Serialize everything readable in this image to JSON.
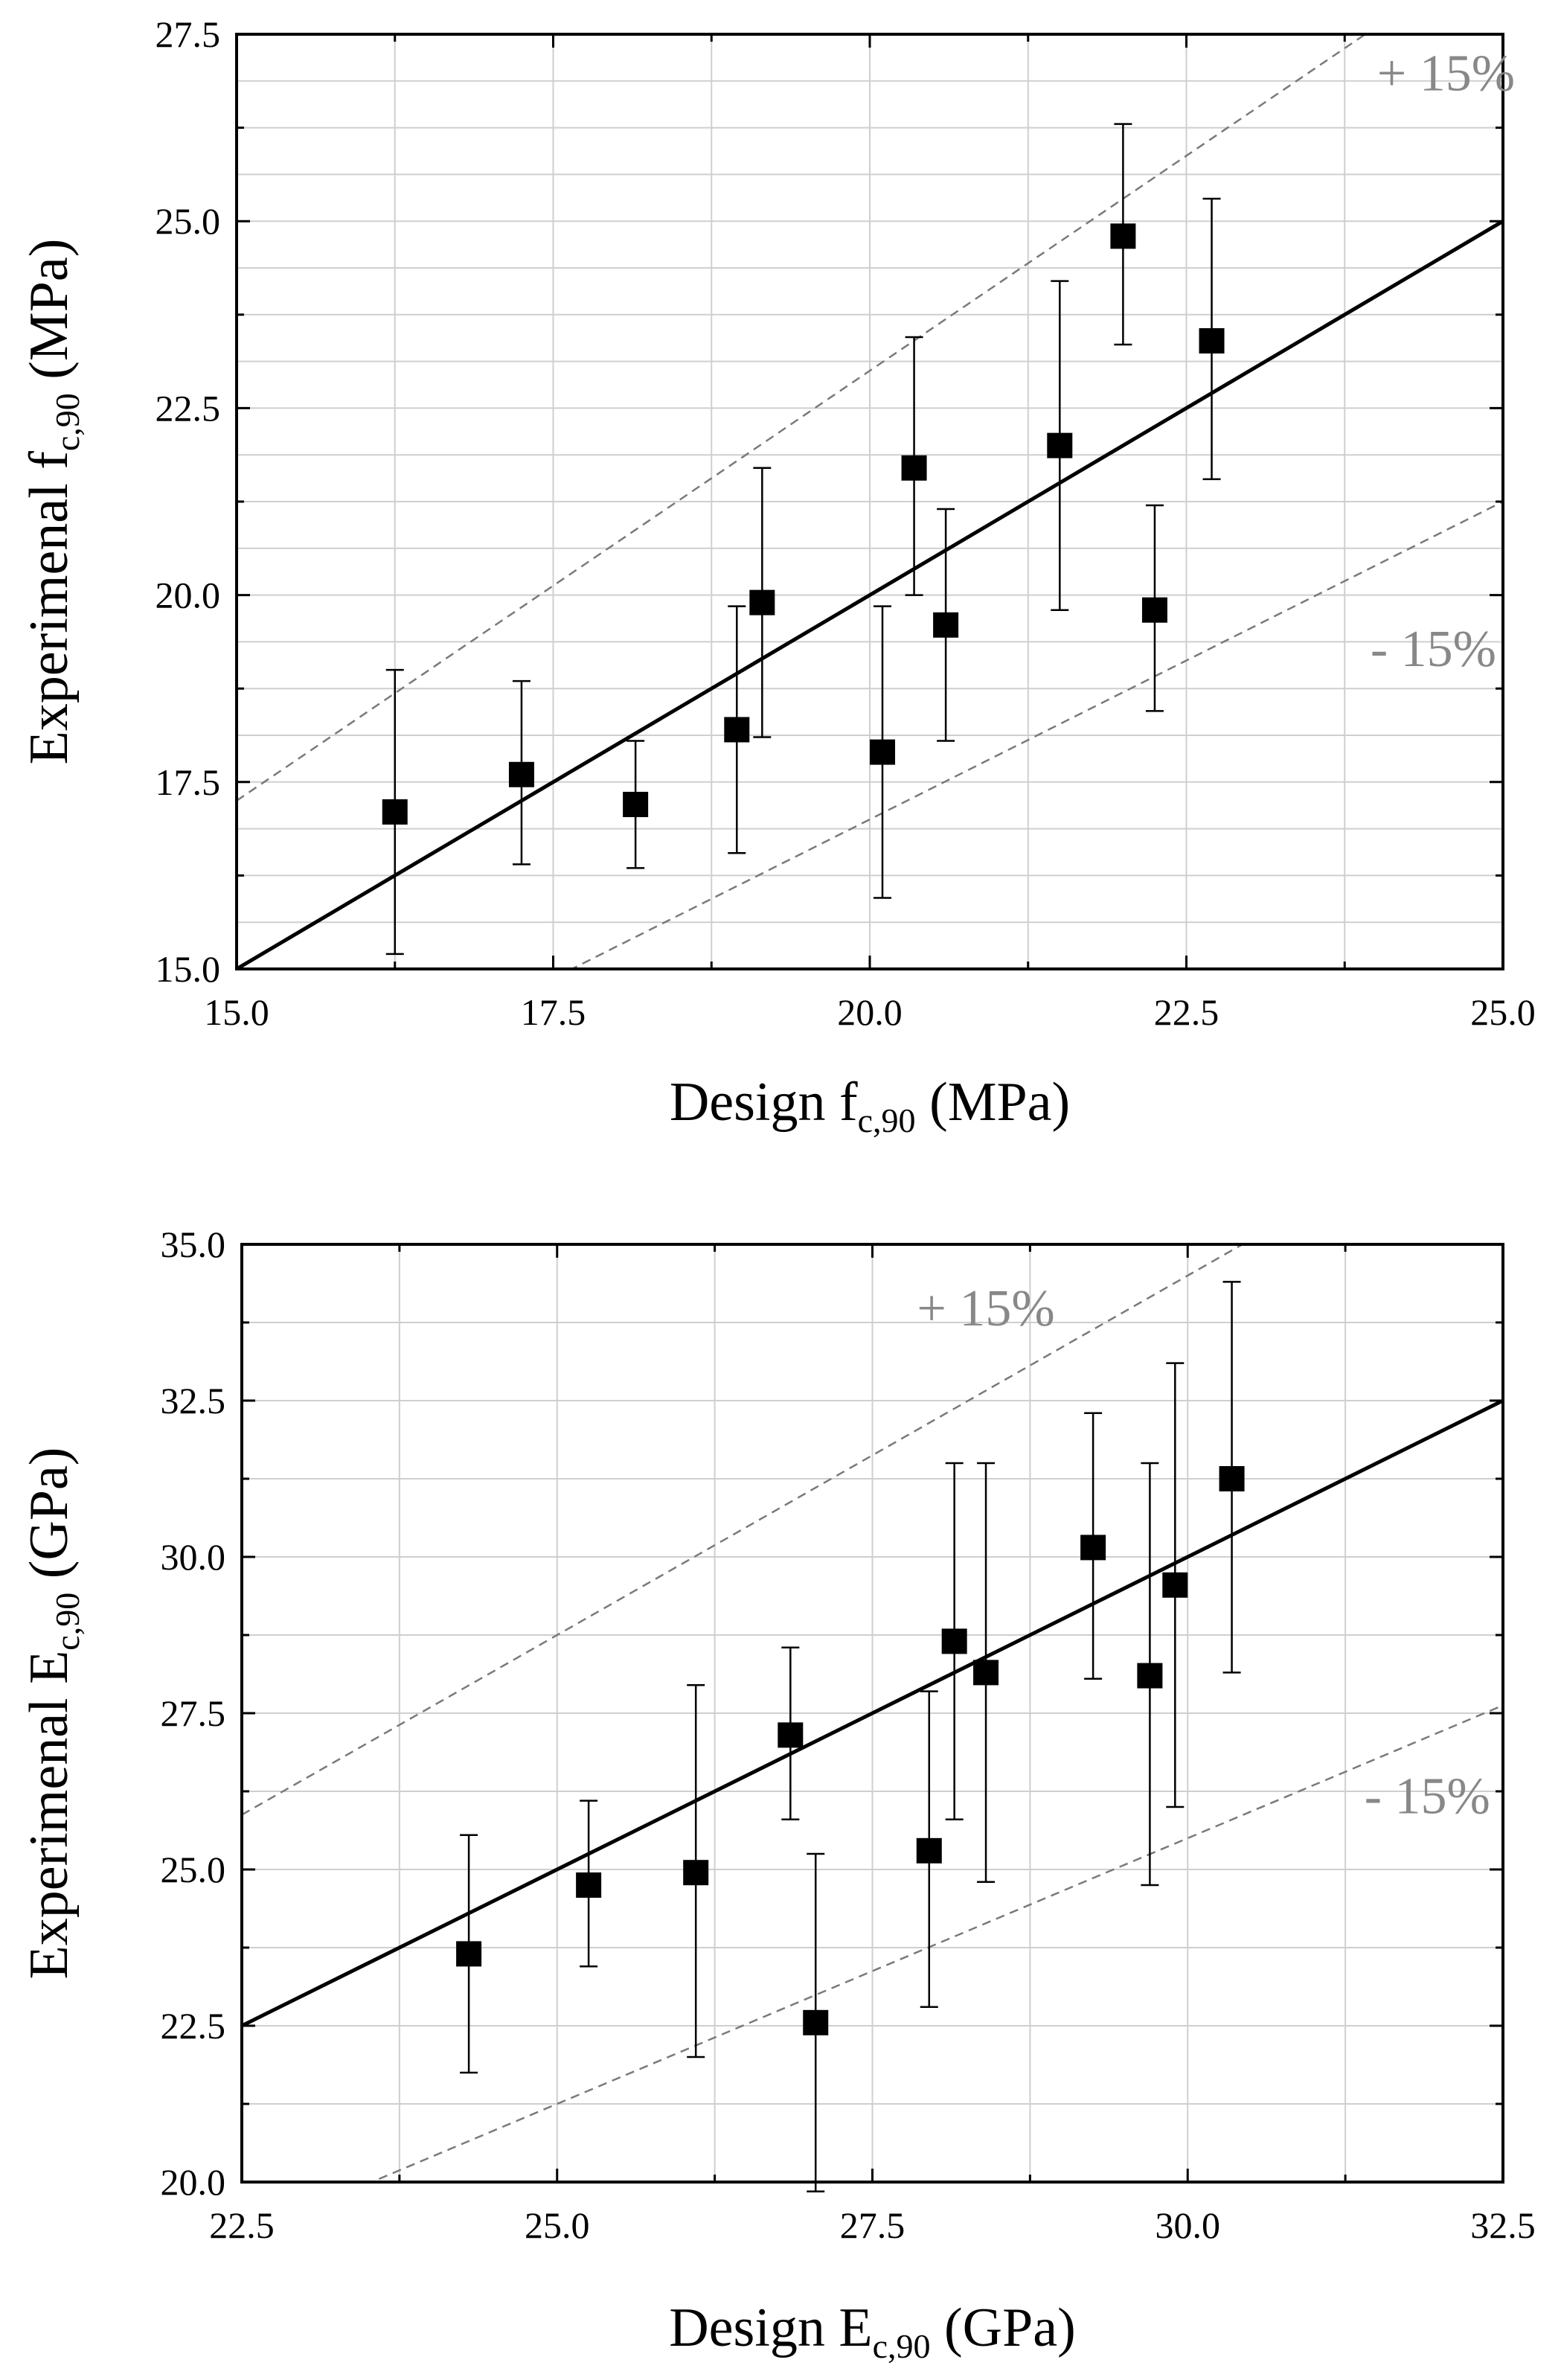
{
  "chart_data": [
    {
      "type": "scatter",
      "title": "",
      "xlabel": {
        "prefix": "Design f",
        "sub": "c,90",
        "suffix": " (MPa)"
      },
      "ylabel": {
        "prefix": "Experimenal f",
        "sub": "c,90",
        "suffix": " (MPa)"
      },
      "xlim": [
        15.0,
        25.0
      ],
      "ylim": [
        15.0,
        27.5
      ],
      "xticks": [
        "15.0",
        "17.5",
        "20.0",
        "22.5",
        "25.0"
      ],
      "yticks": [
        "15.0",
        "17.5",
        "20.0",
        "22.5",
        "25.0",
        "27.5"
      ],
      "grid": true,
      "reference_line": "y = x",
      "bands": [
        {
          "label": "+ 15%",
          "factor": 1.15
        },
        {
          "label": "- 15%",
          "factor": 0.85
        }
      ],
      "points": [
        {
          "x": 16.25,
          "y": 17.1,
          "err_low": 15.2,
          "err_high": 19.0
        },
        {
          "x": 17.25,
          "y": 17.6,
          "err_low": 16.4,
          "err_high": 18.85
        },
        {
          "x": 18.15,
          "y": 17.2,
          "err_low": 16.35,
          "err_high": 18.05
        },
        {
          "x": 18.95,
          "y": 18.2,
          "err_low": 16.55,
          "err_high": 19.85
        },
        {
          "x": 19.15,
          "y": 19.9,
          "err_low": 18.1,
          "err_high": 21.7
        },
        {
          "x": 20.1,
          "y": 17.9,
          "err_low": 15.95,
          "err_high": 19.85
        },
        {
          "x": 20.35,
          "y": 21.7,
          "err_low": 20.0,
          "err_high": 23.45
        },
        {
          "x": 20.6,
          "y": 19.6,
          "err_low": 18.05,
          "err_high": 21.15
        },
        {
          "x": 21.5,
          "y": 22.0,
          "err_low": 19.8,
          "err_high": 24.2
        },
        {
          "x": 22.0,
          "y": 24.8,
          "err_low": 23.35,
          "err_high": 26.3
        },
        {
          "x": 22.25,
          "y": 19.8,
          "err_low": 18.45,
          "err_high": 21.2
        },
        {
          "x": 22.7,
          "y": 23.4,
          "err_low": 21.55,
          "err_high": 25.3
        }
      ]
    },
    {
      "type": "scatter",
      "title": "",
      "xlabel": {
        "prefix": "Design E",
        "sub": "c,90",
        "suffix": " (GPa)"
      },
      "ylabel": {
        "prefix": "Experimenal E",
        "sub": "c,90",
        "suffix": " (GPa)"
      },
      "xlim": [
        22.5,
        32.5
      ],
      "ylim": [
        20.0,
        35.0
      ],
      "xticks": [
        "22.5",
        "25.0",
        "27.5",
        "30.0",
        "32.5"
      ],
      "yticks": [
        "20.0",
        "22.5",
        "25.0",
        "27.5",
        "30.0",
        "32.5",
        "35.0"
      ],
      "grid": true,
      "reference_line": "y = x",
      "bands": [
        {
          "label": "+ 15%",
          "factor": 1.15
        },
        {
          "label": "- 15%",
          "factor": 0.85
        }
      ],
      "points": [
        {
          "x": 24.3,
          "y": 23.65,
          "err_low": 21.75,
          "err_high": 25.55
        },
        {
          "x": 25.25,
          "y": 24.75,
          "err_low": 23.45,
          "err_high": 26.1
        },
        {
          "x": 26.1,
          "y": 24.95,
          "err_low": 22.0,
          "err_high": 27.95
        },
        {
          "x": 26.85,
          "y": 27.15,
          "err_low": 25.8,
          "err_high": 28.55
        },
        {
          "x": 27.05,
          "y": 22.55,
          "err_low": 19.85,
          "err_high": 25.25
        },
        {
          "x": 27.95,
          "y": 25.3,
          "err_low": 22.8,
          "err_high": 27.85
        },
        {
          "x": 28.15,
          "y": 28.65,
          "err_low": 25.8,
          "err_high": 31.5
        },
        {
          "x": 28.4,
          "y": 28.15,
          "err_low": 24.8,
          "err_high": 31.5
        },
        {
          "x": 29.25,
          "y": 30.15,
          "err_low": 28.05,
          "err_high": 32.3
        },
        {
          "x": 29.7,
          "y": 28.1,
          "err_low": 24.75,
          "err_high": 31.5
        },
        {
          "x": 29.9,
          "y": 29.55,
          "err_low": 26.0,
          "err_high": 33.1
        },
        {
          "x": 30.35,
          "y": 31.25,
          "err_low": 28.15,
          "err_high": 34.4
        }
      ]
    }
  ]
}
